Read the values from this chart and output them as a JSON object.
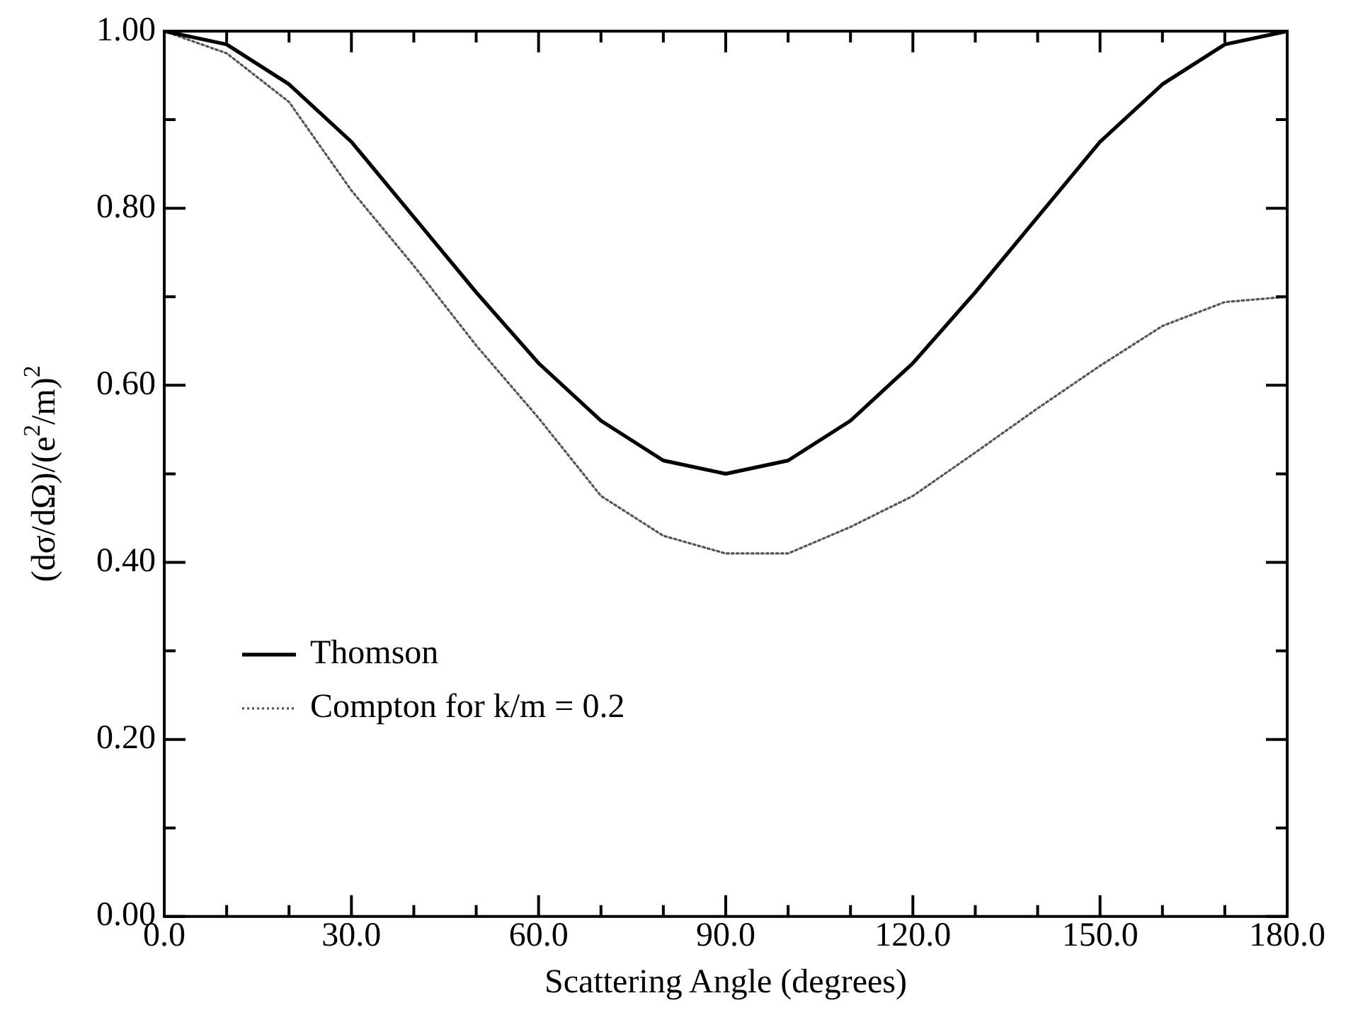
{
  "chart_data": {
    "type": "line",
    "xlabel": "Scattering Angle (degrees)",
    "ylabel": "(dσ/dΩ)/(e$^{2}$/m)$^{2}$",
    "x": [
      0,
      10,
      20,
      30,
      40,
      50,
      60,
      70,
      80,
      90,
      100,
      110,
      120,
      130,
      140,
      150,
      160,
      170,
      180
    ],
    "series": [
      {
        "name": "Thomson",
        "color": "#000000",
        "line_style": "solid",
        "values": [
          1.0,
          0.985,
          0.94,
          0.875,
          0.79,
          0.705,
          0.625,
          0.56,
          0.515,
          0.5,
          0.515,
          0.56,
          0.625,
          0.705,
          0.79,
          0.875,
          0.94,
          0.985,
          1.0
        ]
      },
      {
        "name": "Compton for k/m = 0.2",
        "color": "#555555",
        "line_style": "dotted",
        "values": [
          1.0,
          0.975,
          0.92,
          0.82,
          0.735,
          0.645,
          0.563,
          0.475,
          0.43,
          0.41,
          0.41,
          0.44,
          0.475,
          0.524,
          0.574,
          0.622,
          0.667,
          0.694,
          0.7
        ]
      }
    ],
    "xlim": [
      0,
      180
    ],
    "ylim": [
      0,
      1
    ],
    "xticks": [
      {
        "value": 0,
        "label": "0.0"
      },
      {
        "value": 10,
        "label": null
      },
      {
        "value": 20,
        "label": null
      },
      {
        "value": 30,
        "label": "30.0"
      },
      {
        "value": 40,
        "label": null
      },
      {
        "value": 50,
        "label": null
      },
      {
        "value": 60,
        "label": "60.0"
      },
      {
        "value": 70,
        "label": null
      },
      {
        "value": 80,
        "label": null
      },
      {
        "value": 90,
        "label": "90.0"
      },
      {
        "value": 100,
        "label": null
      },
      {
        "value": 110,
        "label": null
      },
      {
        "value": 120,
        "label": "120.0"
      },
      {
        "value": 130,
        "label": null
      },
      {
        "value": 140,
        "label": null
      },
      {
        "value": 150,
        "label": "150.0"
      },
      {
        "value": 160,
        "label": null
      },
      {
        "value": 170,
        "label": null
      },
      {
        "value": 180,
        "label": "180.0"
      }
    ],
    "yticks": [
      {
        "value": 0,
        "label": "0.00"
      },
      {
        "value": 0.1,
        "label": null
      },
      {
        "value": 0.2,
        "label": "0.20"
      },
      {
        "value": 0.3,
        "label": null
      },
      {
        "value": 0.4,
        "label": "0.40"
      },
      {
        "value": 0.5,
        "label": null
      },
      {
        "value": 0.6,
        "label": "0.60"
      },
      {
        "value": 0.7,
        "label": null
      },
      {
        "value": 0.8,
        "label": "0.80"
      },
      {
        "value": 0.9,
        "label": null
      },
      {
        "value": 1.0,
        "label": "1.00"
      }
    ],
    "grid": false,
    "legend": "bottom left",
    "marker": "none"
  }
}
